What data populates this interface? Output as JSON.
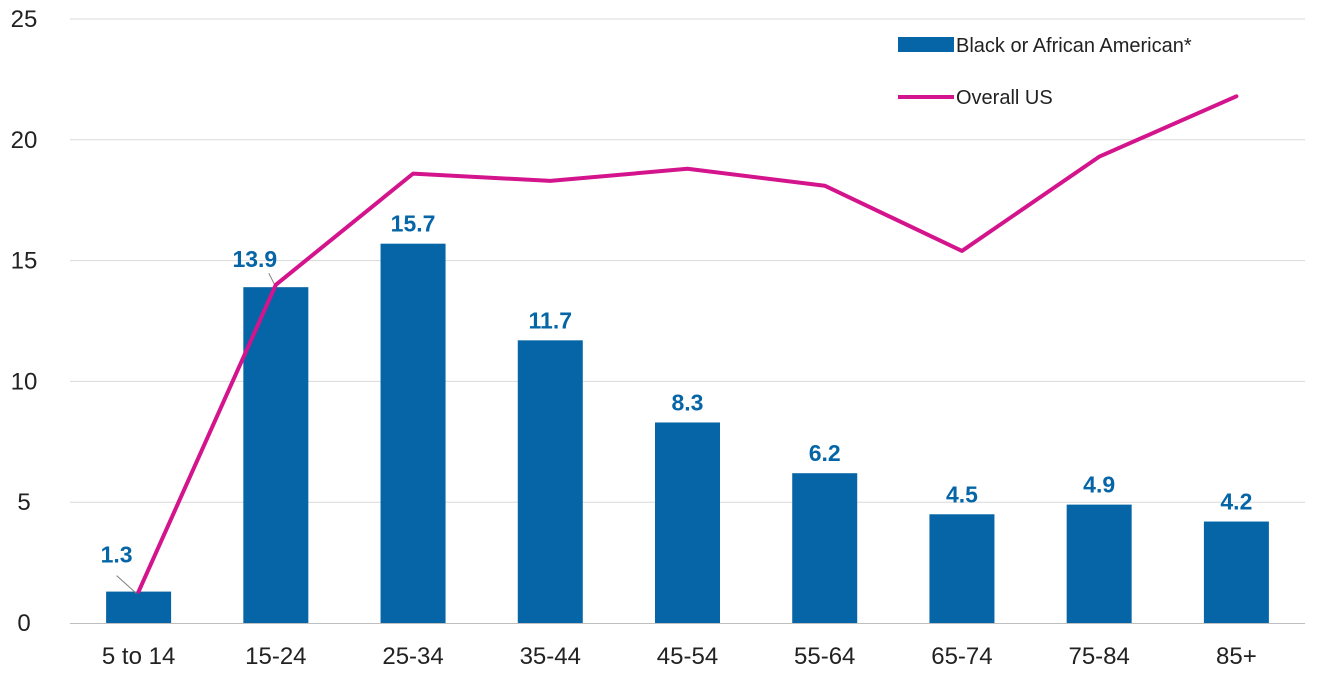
{
  "chart_data": {
    "type": "bar",
    "categories": [
      "5 to 14",
      "15-24",
      "25-34",
      "35-44",
      "45-54",
      "55-64",
      "65-74",
      "75-84",
      "85+"
    ],
    "series": [
      {
        "name": "Black or African American*",
        "type": "bar",
        "color": "#0565a6",
        "values": [
          1.3,
          13.9,
          15.7,
          11.7,
          8.3,
          6.2,
          4.5,
          4.9,
          4.2
        ],
        "labels": [
          "1.3",
          "13.9",
          "15.7",
          "11.7",
          "8.3",
          "6.2",
          "4.5",
          "4.9",
          "4.2"
        ]
      },
      {
        "name": "Overall US",
        "type": "line",
        "color": "#d4148c",
        "values": [
          1.3,
          14.0,
          18.6,
          18.3,
          18.8,
          18.1,
          15.4,
          19.3,
          21.8
        ]
      }
    ],
    "ylim": [
      0,
      25
    ],
    "yticks": [
      "0",
      "5",
      "10",
      "15",
      "20",
      "25"
    ],
    "grid": true,
    "legend_position": "top-right",
    "label_color": "#0565a6"
  }
}
